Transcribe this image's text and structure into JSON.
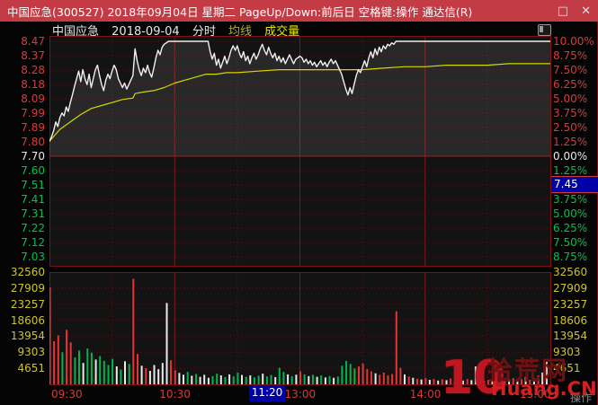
{
  "window": {
    "title": "中国应急(300527) 2018年09月04日 星期二 PageUp/Down:前后日 空格键:操作 通达信(R)",
    "maximize_glyph": "□",
    "close_glyph": "✕"
  },
  "chart_header": {
    "stock_name": "中国应急",
    "date": "2018-09-04",
    "chart_type": "分时",
    "legend_avg": "均线",
    "legend_volume": "成交量"
  },
  "axes": {
    "left_price": [
      "8.47",
      "8.37",
      "8.28",
      "8.18",
      "8.09",
      "7.99",
      "7.89",
      "7.80",
      "7.70",
      "7.60",
      "7.51",
      "7.41",
      "7.31",
      "7.22",
      "7.12",
      "7.03"
    ],
    "right_pct": [
      "10.00%",
      "8.75%",
      "7.50%",
      "6.25%",
      "5.00%",
      "3.75%",
      "2.50%",
      "1.25%",
      "0.00%",
      "1.25%",
      "2.50%",
      "3.75%",
      "5.00%",
      "6.25%",
      "7.50%",
      "8.75%"
    ],
    "volume_ticks": [
      "32560",
      "27909",
      "23257",
      "18606",
      "13954",
      "9303",
      "4651"
    ],
    "time_ticks": [
      {
        "label": "09:30",
        "min": 0
      },
      {
        "label": "10:30",
        "min": 60
      },
      {
        "label": "13:00",
        "min": 120
      },
      {
        "label": "14:00",
        "min": 180
      },
      {
        "label": "15:00",
        "min": 240
      }
    ]
  },
  "cursor": {
    "time": "11:20",
    "price": "7.45"
  },
  "watermark": {
    "big": "10",
    "site": "拾荒网",
    "domain": "Huang.CN"
  },
  "status_hint": "操作",
  "colors": {
    "up": "#d93a3a",
    "down": "#00c050",
    "flat": "#e8e8e8",
    "price_line": "#f0f0f0",
    "avg_line": "#d6d600",
    "bar_up": "#e33535",
    "bar_down": "#00b44e",
    "bar_flat": "#eaeaea",
    "grid_dot": "#571418",
    "grid_solid": "#8f1a1f",
    "titlebar": "#c23b45",
    "badge": "#0000a8"
  },
  "chart_data": {
    "type": "line",
    "title": "中国应急 300527 分时图 2018-09-04",
    "prev_close": 7.7,
    "limit_up": 8.47,
    "last_price": 8.47,
    "change_pct_range": [
      10.0,
      -10.0
    ],
    "session_minutes": 240,
    "pct_grid_step": 1.25,
    "volume_scale_max": 32560,
    "price_series": [
      [
        0,
        7.8
      ],
      [
        1,
        7.83
      ],
      [
        2,
        7.87
      ],
      [
        3,
        7.93
      ],
      [
        4,
        7.9
      ],
      [
        5,
        7.96
      ],
      [
        6,
        7.99
      ],
      [
        7,
        7.97
      ],
      [
        8,
        8.03
      ],
      [
        9,
        8.0
      ],
      [
        10,
        8.06
      ],
      [
        11,
        8.11
      ],
      [
        12,
        8.17
      ],
      [
        13,
        8.22
      ],
      [
        14,
        8.27
      ],
      [
        15,
        8.2
      ],
      [
        16,
        8.28
      ],
      [
        17,
        8.22
      ],
      [
        18,
        8.18
      ],
      [
        19,
        8.25
      ],
      [
        20,
        8.16
      ],
      [
        21,
        8.22
      ],
      [
        22,
        8.28
      ],
      [
        23,
        8.31
      ],
      [
        24,
        8.24
      ],
      [
        25,
        8.18
      ],
      [
        26,
        8.14
      ],
      [
        27,
        8.21
      ],
      [
        28,
        8.25
      ],
      [
        29,
        8.22
      ],
      [
        30,
        8.27
      ],
      [
        31,
        8.31
      ],
      [
        32,
        8.28
      ],
      [
        33,
        8.22
      ],
      [
        34,
        8.19
      ],
      [
        35,
        8.16
      ],
      [
        36,
        8.19
      ],
      [
        37,
        8.15
      ],
      [
        38,
        8.18
      ],
      [
        39,
        8.21
      ],
      [
        40,
        8.24
      ],
      [
        41,
        8.42
      ],
      [
        42,
        8.34
      ],
      [
        43,
        8.28
      ],
      [
        44,
        8.24
      ],
      [
        45,
        8.29
      ],
      [
        46,
        8.26
      ],
      [
        47,
        8.31
      ],
      [
        48,
        8.26
      ],
      [
        49,
        8.23
      ],
      [
        50,
        8.29
      ],
      [
        51,
        8.36
      ],
      [
        52,
        8.41
      ],
      [
        53,
        8.38
      ],
      [
        54,
        8.43
      ],
      [
        55,
        8.45
      ],
      [
        56,
        8.46
      ],
      [
        57,
        8.47
      ],
      [
        76,
        8.47
      ],
      [
        77,
        8.4
      ],
      [
        78,
        8.35
      ],
      [
        79,
        8.39
      ],
      [
        80,
        8.31
      ],
      [
        81,
        8.35
      ],
      [
        82,
        8.29
      ],
      [
        83,
        8.33
      ],
      [
        84,
        8.37
      ],
      [
        85,
        8.32
      ],
      [
        86,
        8.36
      ],
      [
        87,
        8.41
      ],
      [
        88,
        8.44
      ],
      [
        89,
        8.41
      ],
      [
        90,
        8.44
      ],
      [
        91,
        8.39
      ],
      [
        92,
        8.36
      ],
      [
        93,
        8.4
      ],
      [
        94,
        8.34
      ],
      [
        95,
        8.37
      ],
      [
        96,
        8.32
      ],
      [
        97,
        8.36
      ],
      [
        98,
        8.39
      ],
      [
        99,
        8.35
      ],
      [
        100,
        8.38
      ],
      [
        101,
        8.42
      ],
      [
        102,
        8.45
      ],
      [
        103,
        8.41
      ],
      [
        104,
        8.38
      ],
      [
        105,
        8.43
      ],
      [
        106,
        8.39
      ],
      [
        107,
        8.36
      ],
      [
        108,
        8.39
      ],
      [
        109,
        8.34
      ],
      [
        110,
        8.37
      ],
      [
        111,
        8.33
      ],
      [
        112,
        8.36
      ],
      [
        113,
        8.32
      ],
      [
        114,
        8.35
      ],
      [
        115,
        8.38
      ],
      [
        116,
        8.35
      ],
      [
        117,
        8.32
      ],
      [
        118,
        8.35
      ],
      [
        119,
        8.36
      ],
      [
        120,
        8.37
      ],
      [
        121,
        8.36
      ],
      [
        122,
        8.33
      ],
      [
        123,
        8.35
      ],
      [
        124,
        8.32
      ],
      [
        125,
        8.34
      ],
      [
        126,
        8.31
      ],
      [
        127,
        8.33
      ],
      [
        128,
        8.3
      ],
      [
        129,
        8.32
      ],
      [
        130,
        8.34
      ],
      [
        131,
        8.31
      ],
      [
        132,
        8.33
      ],
      [
        133,
        8.3
      ],
      [
        134,
        8.33
      ],
      [
        135,
        8.35
      ],
      [
        136,
        8.32
      ],
      [
        137,
        8.34
      ],
      [
        138,
        8.31
      ],
      [
        139,
        8.28
      ],
      [
        140,
        8.25
      ],
      [
        141,
        8.2
      ],
      [
        142,
        8.15
      ],
      [
        143,
        8.11
      ],
      [
        144,
        8.16
      ],
      [
        145,
        8.12
      ],
      [
        146,
        8.18
      ],
      [
        147,
        8.24
      ],
      [
        148,
        8.28
      ],
      [
        149,
        8.26
      ],
      [
        150,
        8.3
      ],
      [
        151,
        8.34
      ],
      [
        152,
        8.3
      ],
      [
        153,
        8.36
      ],
      [
        154,
        8.4
      ],
      [
        155,
        8.36
      ],
      [
        156,
        8.42
      ],
      [
        157,
        8.38
      ],
      [
        158,
        8.43
      ],
      [
        159,
        8.4
      ],
      [
        160,
        8.44
      ],
      [
        161,
        8.42
      ],
      [
        162,
        8.45
      ],
      [
        163,
        8.44
      ],
      [
        164,
        8.46
      ],
      [
        165,
        8.45
      ],
      [
        166,
        8.47
      ],
      [
        240,
        8.47
      ]
    ],
    "avg_series": [
      [
        0,
        7.8
      ],
      [
        5,
        7.88
      ],
      [
        10,
        7.93
      ],
      [
        15,
        7.98
      ],
      [
        20,
        8.02
      ],
      [
        25,
        8.04
      ],
      [
        30,
        8.06
      ],
      [
        35,
        8.08
      ],
      [
        40,
        8.09
      ],
      [
        41,
        8.12
      ],
      [
        45,
        8.13
      ],
      [
        50,
        8.14
      ],
      [
        55,
        8.16
      ],
      [
        60,
        8.19
      ],
      [
        65,
        8.21
      ],
      [
        70,
        8.23
      ],
      [
        75,
        8.25
      ],
      [
        80,
        8.25
      ],
      [
        85,
        8.26
      ],
      [
        90,
        8.26
      ],
      [
        100,
        8.27
      ],
      [
        110,
        8.28
      ],
      [
        120,
        8.28
      ],
      [
        130,
        8.28
      ],
      [
        140,
        8.28
      ],
      [
        150,
        8.28
      ],
      [
        160,
        8.29
      ],
      [
        170,
        8.3
      ],
      [
        180,
        8.3
      ],
      [
        190,
        8.31
      ],
      [
        200,
        8.31
      ],
      [
        210,
        8.31
      ],
      [
        220,
        8.32
      ],
      [
        230,
        8.32
      ],
      [
        240,
        8.32
      ]
    ],
    "volume_series": [
      [
        0,
        28100,
        "u"
      ],
      [
        2,
        12500,
        "u"
      ],
      [
        4,
        14200,
        "u"
      ],
      [
        6,
        9300,
        "d"
      ],
      [
        8,
        15800,
        "u"
      ],
      [
        10,
        12200,
        "u"
      ],
      [
        12,
        7800,
        "d"
      ],
      [
        14,
        9800,
        "d"
      ],
      [
        16,
        6200,
        "f"
      ],
      [
        18,
        10400,
        "d"
      ],
      [
        20,
        9200,
        "d"
      ],
      [
        22,
        7200,
        "f"
      ],
      [
        24,
        8200,
        "d"
      ],
      [
        26,
        6800,
        "d"
      ],
      [
        28,
        5600,
        "d"
      ],
      [
        30,
        7400,
        "d"
      ],
      [
        32,
        5200,
        "f"
      ],
      [
        34,
        4300,
        "d"
      ],
      [
        36,
        6700,
        "f"
      ],
      [
        38,
        5900,
        "d"
      ],
      [
        40,
        30600,
        "u"
      ],
      [
        42,
        8800,
        "u"
      ],
      [
        44,
        5400,
        "f"
      ],
      [
        46,
        4700,
        "u"
      ],
      [
        48,
        3900,
        "f"
      ],
      [
        50,
        5600,
        "f"
      ],
      [
        52,
        4400,
        "f"
      ],
      [
        54,
        6200,
        "f"
      ],
      [
        56,
        23600,
        "f"
      ],
      [
        58,
        7000,
        "u"
      ],
      [
        60,
        4100,
        "u"
      ],
      [
        62,
        3300,
        "f"
      ],
      [
        64,
        2800,
        "f"
      ],
      [
        66,
        3600,
        "d"
      ],
      [
        68,
        2500,
        "f"
      ],
      [
        70,
        3000,
        "d"
      ],
      [
        72,
        2200,
        "f"
      ],
      [
        74,
        2800,
        "f"
      ],
      [
        76,
        1900,
        "f"
      ],
      [
        78,
        2400,
        "d"
      ],
      [
        80,
        3100,
        "d"
      ],
      [
        82,
        2600,
        "f"
      ],
      [
        84,
        2100,
        "d"
      ],
      [
        86,
        2900,
        "f"
      ],
      [
        88,
        2300,
        "d"
      ],
      [
        90,
        3400,
        "d"
      ],
      [
        92,
        2700,
        "f"
      ],
      [
        94,
        2200,
        "d"
      ],
      [
        96,
        2600,
        "f"
      ],
      [
        98,
        2000,
        "d"
      ],
      [
        100,
        2500,
        "d"
      ],
      [
        102,
        3100,
        "f"
      ],
      [
        104,
        2300,
        "d"
      ],
      [
        106,
        2700,
        "d"
      ],
      [
        108,
        2100,
        "f"
      ],
      [
        110,
        4800,
        "d"
      ],
      [
        112,
        3600,
        "d"
      ],
      [
        114,
        2900,
        "f"
      ],
      [
        116,
        2400,
        "d"
      ],
      [
        118,
        2800,
        "f"
      ],
      [
        120,
        3800,
        "u"
      ],
      [
        122,
        2900,
        "d"
      ],
      [
        124,
        2400,
        "f"
      ],
      [
        126,
        2800,
        "d"
      ],
      [
        128,
        2200,
        "f"
      ],
      [
        130,
        2600,
        "d"
      ],
      [
        132,
        2000,
        "f"
      ],
      [
        134,
        2400,
        "d"
      ],
      [
        136,
        1900,
        "f"
      ],
      [
        138,
        2300,
        "d"
      ],
      [
        140,
        5400,
        "d"
      ],
      [
        142,
        6800,
        "d"
      ],
      [
        144,
        5900,
        "d"
      ],
      [
        146,
        4600,
        "d"
      ],
      [
        148,
        5200,
        "u"
      ],
      [
        150,
        6100,
        "u"
      ],
      [
        152,
        4400,
        "u"
      ],
      [
        154,
        3800,
        "u"
      ],
      [
        156,
        3200,
        "f"
      ],
      [
        158,
        2800,
        "u"
      ],
      [
        160,
        3400,
        "u"
      ],
      [
        162,
        2600,
        "u"
      ],
      [
        164,
        3000,
        "u"
      ],
      [
        166,
        21200,
        "u"
      ],
      [
        168,
        4800,
        "u"
      ],
      [
        170,
        2900,
        "f"
      ],
      [
        172,
        2300,
        "u"
      ],
      [
        174,
        1900,
        "f"
      ],
      [
        176,
        1600,
        "u"
      ],
      [
        178,
        1400,
        "f"
      ],
      [
        180,
        1800,
        "u"
      ],
      [
        182,
        1300,
        "f"
      ],
      [
        184,
        1600,
        "u"
      ],
      [
        186,
        1100,
        "f"
      ],
      [
        188,
        1500,
        "u"
      ],
      [
        190,
        1200,
        "f"
      ],
      [
        192,
        1700,
        "u"
      ],
      [
        194,
        1000,
        "f"
      ],
      [
        196,
        1400,
        "u"
      ],
      [
        198,
        1100,
        "f"
      ],
      [
        200,
        1600,
        "u"
      ],
      [
        202,
        1200,
        "f"
      ],
      [
        204,
        5200,
        "f"
      ],
      [
        206,
        1500,
        "u"
      ],
      [
        208,
        1000,
        "f"
      ],
      [
        210,
        1300,
        "u"
      ],
      [
        212,
        900,
        "f"
      ],
      [
        214,
        1200,
        "u"
      ],
      [
        216,
        1500,
        "f"
      ],
      [
        218,
        1000,
        "u"
      ],
      [
        220,
        1400,
        "f"
      ],
      [
        222,
        1800,
        "u"
      ],
      [
        224,
        1100,
        "f"
      ],
      [
        226,
        1500,
        "u"
      ],
      [
        228,
        2200,
        "f"
      ],
      [
        230,
        1300,
        "u"
      ],
      [
        232,
        1700,
        "f"
      ],
      [
        234,
        2600,
        "u"
      ],
      [
        236,
        3400,
        "f"
      ],
      [
        238,
        6500,
        "f"
      ]
    ]
  }
}
